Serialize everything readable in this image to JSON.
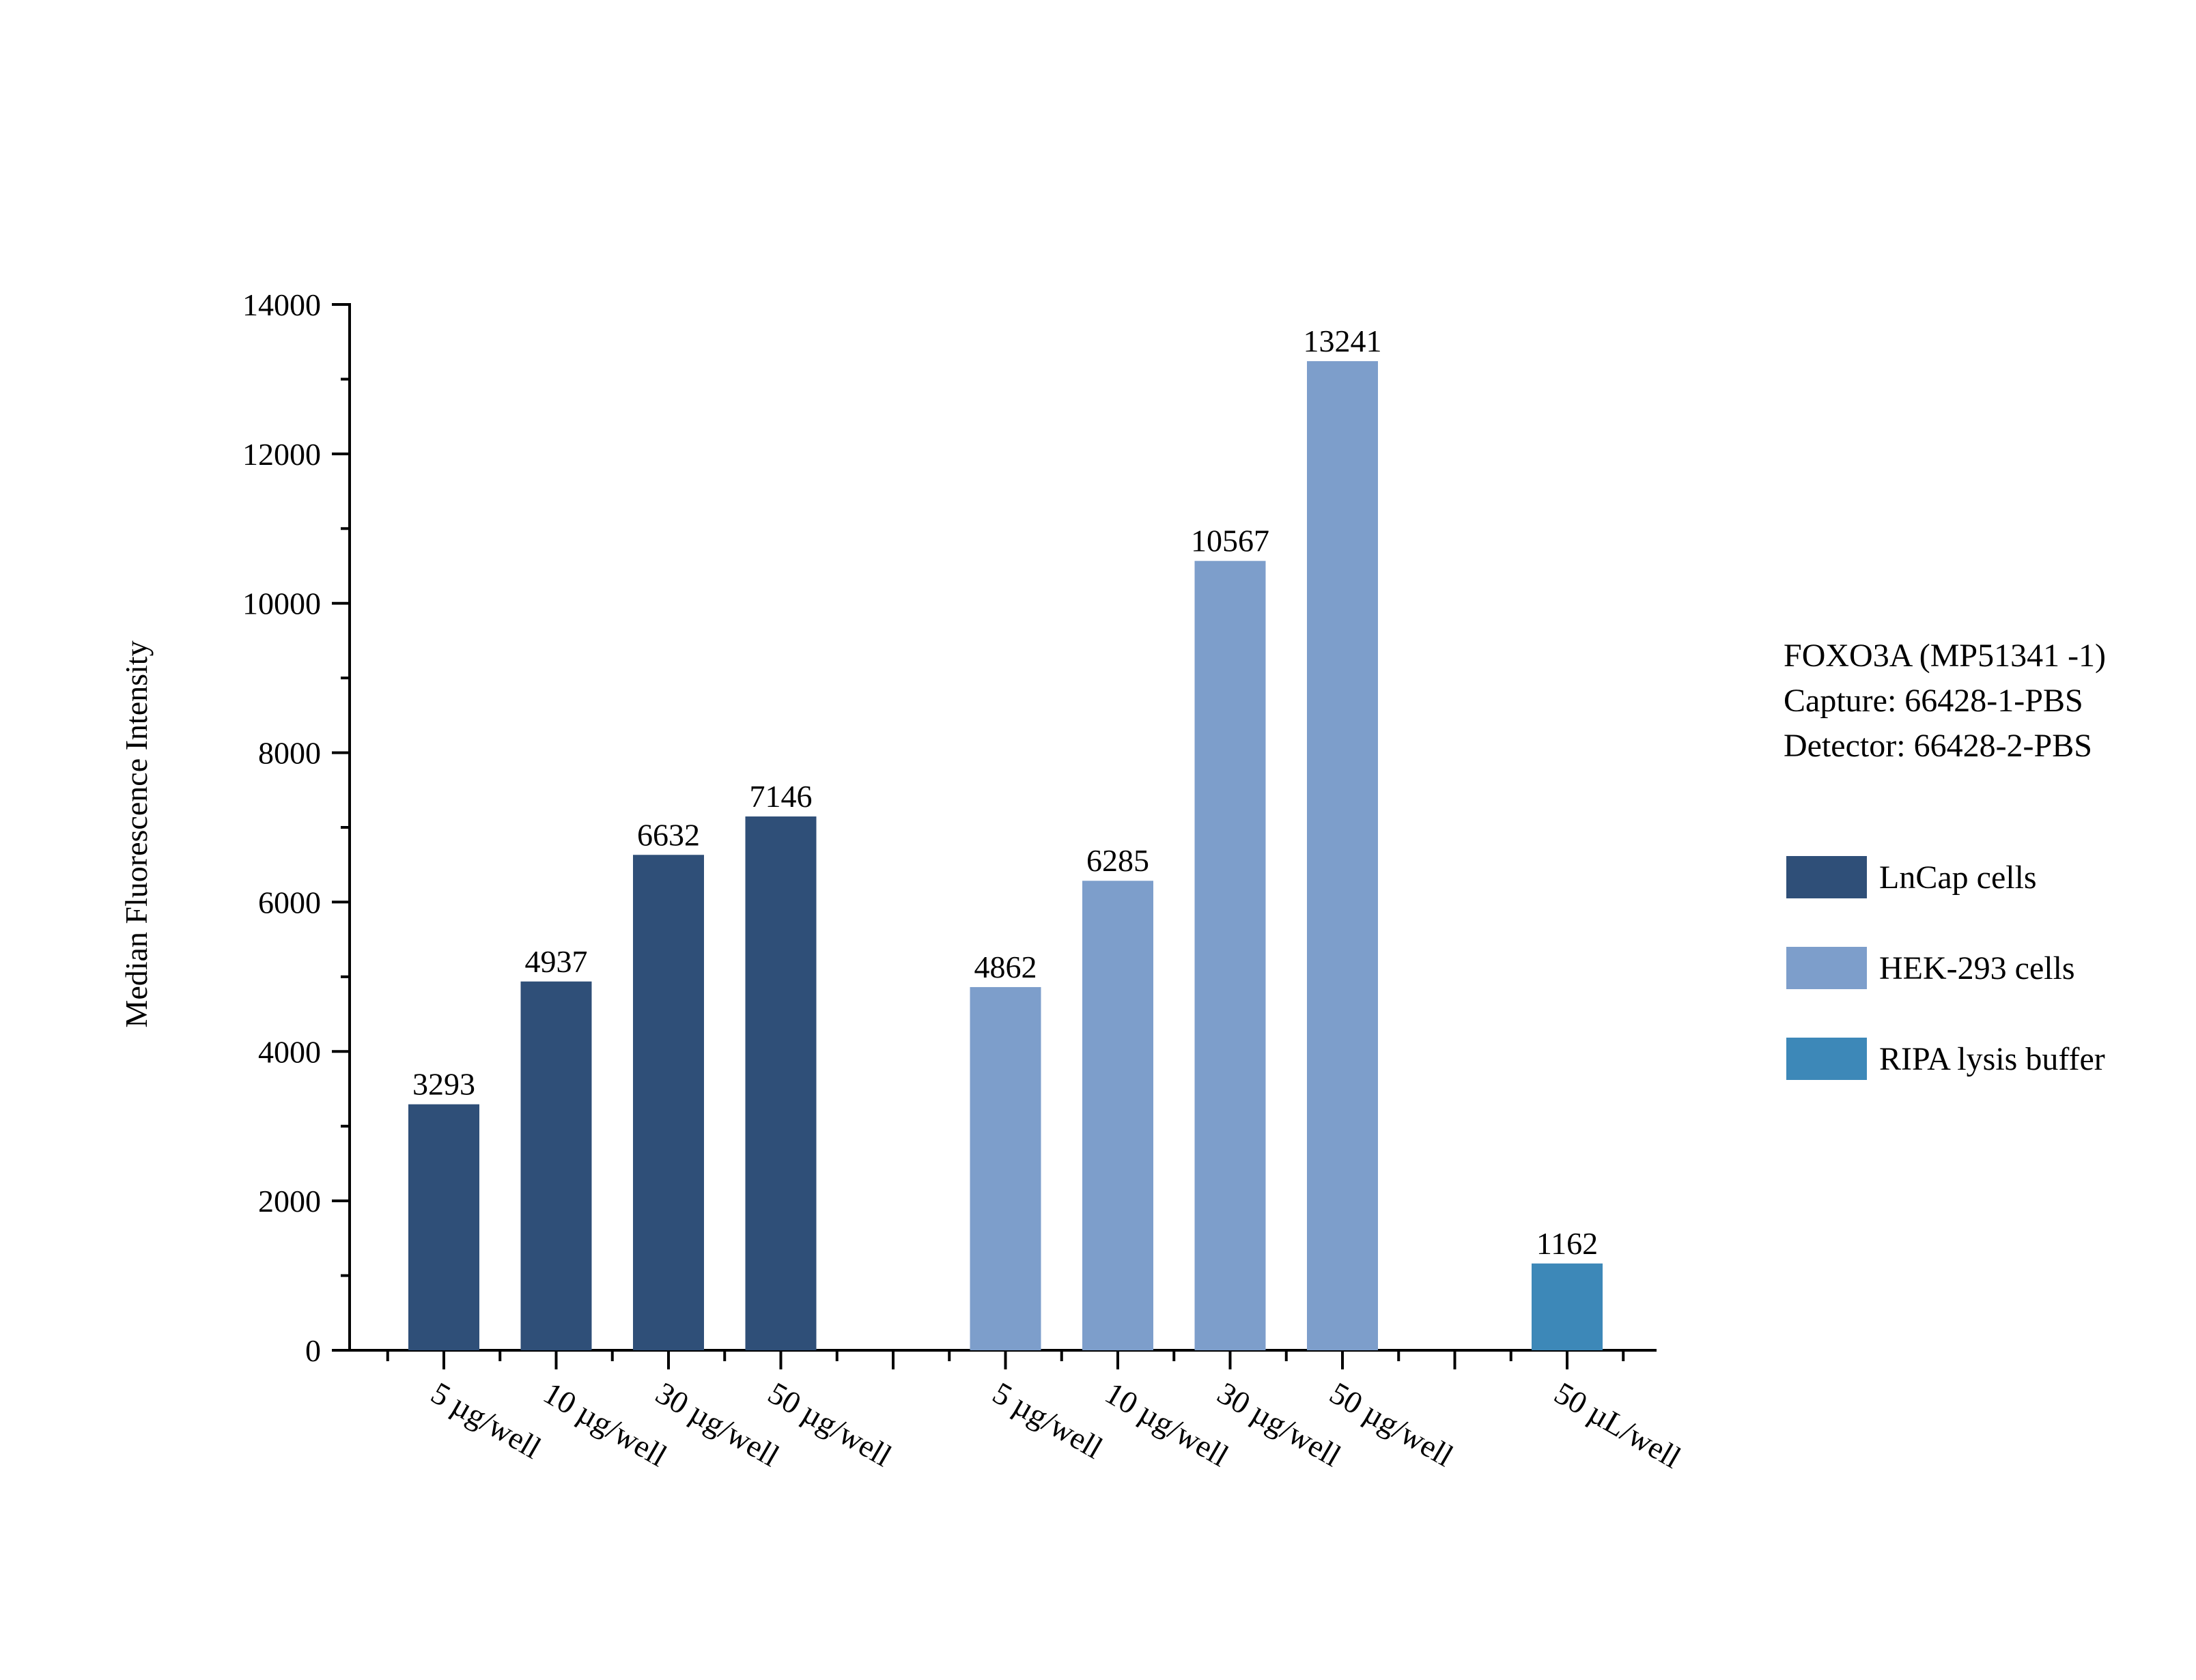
{
  "chart_data": {
    "type": "bar",
    "title": "",
    "xlabel": "",
    "ylabel": "Median Fluorescence Intensity",
    "ylim": [
      0,
      14000
    ],
    "yticks": [
      0,
      2000,
      4000,
      6000,
      8000,
      10000,
      12000,
      14000
    ],
    "grid": false,
    "legend_position": "right",
    "info_lines": [
      "FOXO3A (MP51341 -1)",
      "Capture: 66428-1-PBS",
      "Detector: 66428-2-PBS"
    ],
    "series": [
      {
        "name": "LnCap cells",
        "color": "#2f4f78",
        "categories": [
          "5 µg/well",
          "10 µg/well",
          "30 µg/well",
          "50 µg/well"
        ],
        "values": [
          3293,
          4937,
          6632,
          7146
        ]
      },
      {
        "name": "HEK-293 cells",
        "color": "#7d9ecb",
        "categories": [
          "5 µg/well",
          "10 µg/well",
          "30 µg/well",
          "50 µg/well"
        ],
        "values": [
          4862,
          6285,
          10567,
          13241
        ]
      },
      {
        "name": "RIPA lysis buffer",
        "color": "#3d88b8",
        "categories": [
          "50 µL/well"
        ],
        "values": [
          1162
        ]
      }
    ]
  }
}
